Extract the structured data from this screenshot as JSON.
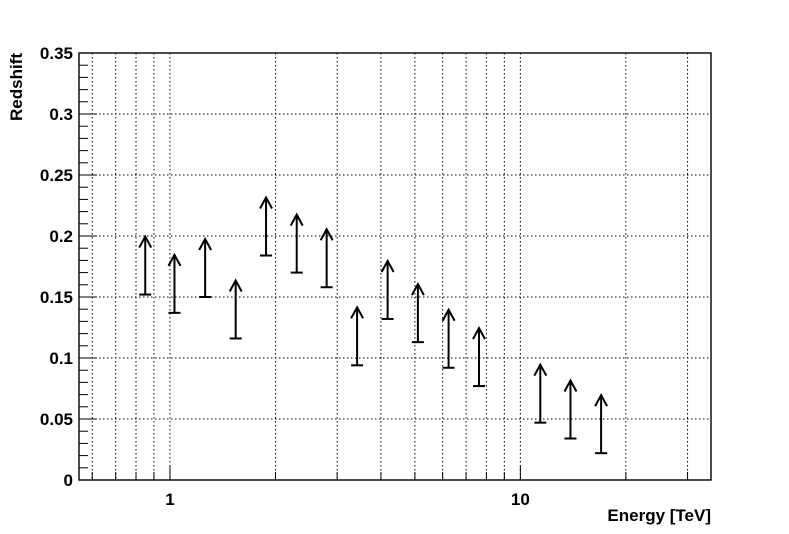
{
  "chart_data": {
    "type": "scatter",
    "marker": "lower-limit-arrow",
    "xlabel": "Energy [TeV]",
    "ylabel": "Redshift",
    "xscale": "log",
    "xlim": [
      0.55,
      35
    ],
    "ylim": [
      0,
      0.35
    ],
    "xticks_major": [
      1,
      10
    ],
    "xtick_labels": [
      "1",
      "10"
    ],
    "yticks_major": [
      0,
      0.05,
      0.1,
      0.15,
      0.2,
      0.25,
      0.3,
      0.35
    ],
    "ytick_labels": [
      "0",
      "0.05",
      "0.1",
      "0.15",
      "0.2",
      "0.25",
      "0.3",
      "0.35"
    ],
    "grid": true,
    "grid_style": "dotted",
    "points": [
      {
        "x": 0.85,
        "y": 0.152
      },
      {
        "x": 1.03,
        "y": 0.137
      },
      {
        "x": 1.26,
        "y": 0.15
      },
      {
        "x": 1.54,
        "y": 0.116
      },
      {
        "x": 1.88,
        "y": 0.184
      },
      {
        "x": 2.3,
        "y": 0.17
      },
      {
        "x": 2.8,
        "y": 0.158
      },
      {
        "x": 3.42,
        "y": 0.094
      },
      {
        "x": 4.18,
        "y": 0.132
      },
      {
        "x": 5.1,
        "y": 0.113
      },
      {
        "x": 6.24,
        "y": 0.092
      },
      {
        "x": 7.62,
        "y": 0.077
      },
      {
        "x": 11.4,
        "y": 0.047
      },
      {
        "x": 13.9,
        "y": 0.034
      },
      {
        "x": 17.0,
        "y": 0.022
      }
    ]
  }
}
